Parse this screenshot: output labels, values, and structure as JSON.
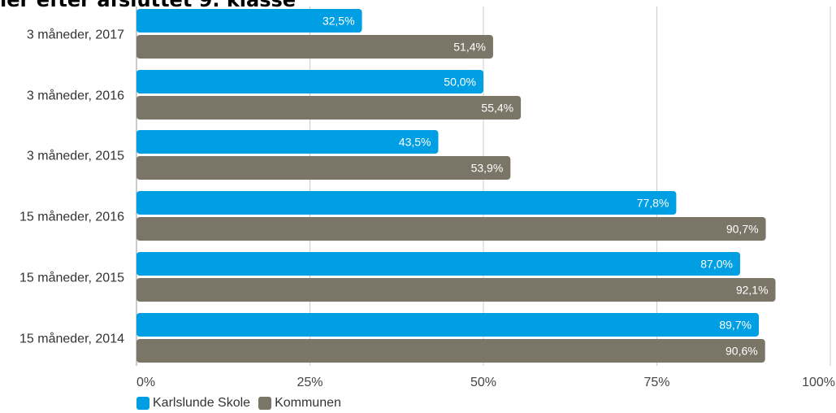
{
  "chart_data": {
    "type": "bar",
    "orientation": "horizontal",
    "title": "ler efter afsluttet 9. klasse",
    "categories": [
      "3 måneder, 2017",
      "3 måneder, 2016",
      "3 måneder, 2015",
      "15 måneder, 2016",
      "15 måneder, 2015",
      "15 måneder, 2014"
    ],
    "series": [
      {
        "name": "Karlslunde Skole",
        "color": "#009fe3",
        "values": [
          32.5,
          50.0,
          43.5,
          77.8,
          87.0,
          89.7
        ],
        "labels": [
          "32,5%",
          "50,0%",
          "43,5%",
          "77,8%",
          "87,0%",
          "89,7%"
        ]
      },
      {
        "name": "Kommunen",
        "color": "#7a7566",
        "values": [
          51.4,
          55.4,
          53.9,
          90.7,
          92.1,
          90.6
        ],
        "labels": [
          "51,4%",
          "55,4%",
          "53,9%",
          "90,7%",
          "92,1%",
          "90,6%"
        ]
      }
    ],
    "xlim": [
      0,
      100
    ],
    "xticks": [
      0,
      25,
      50,
      75,
      100
    ],
    "xtick_labels": [
      "0%",
      "25%",
      "50%",
      "75%",
      "100%"
    ],
    "grid": true,
    "legend_position": "bottom-left"
  }
}
